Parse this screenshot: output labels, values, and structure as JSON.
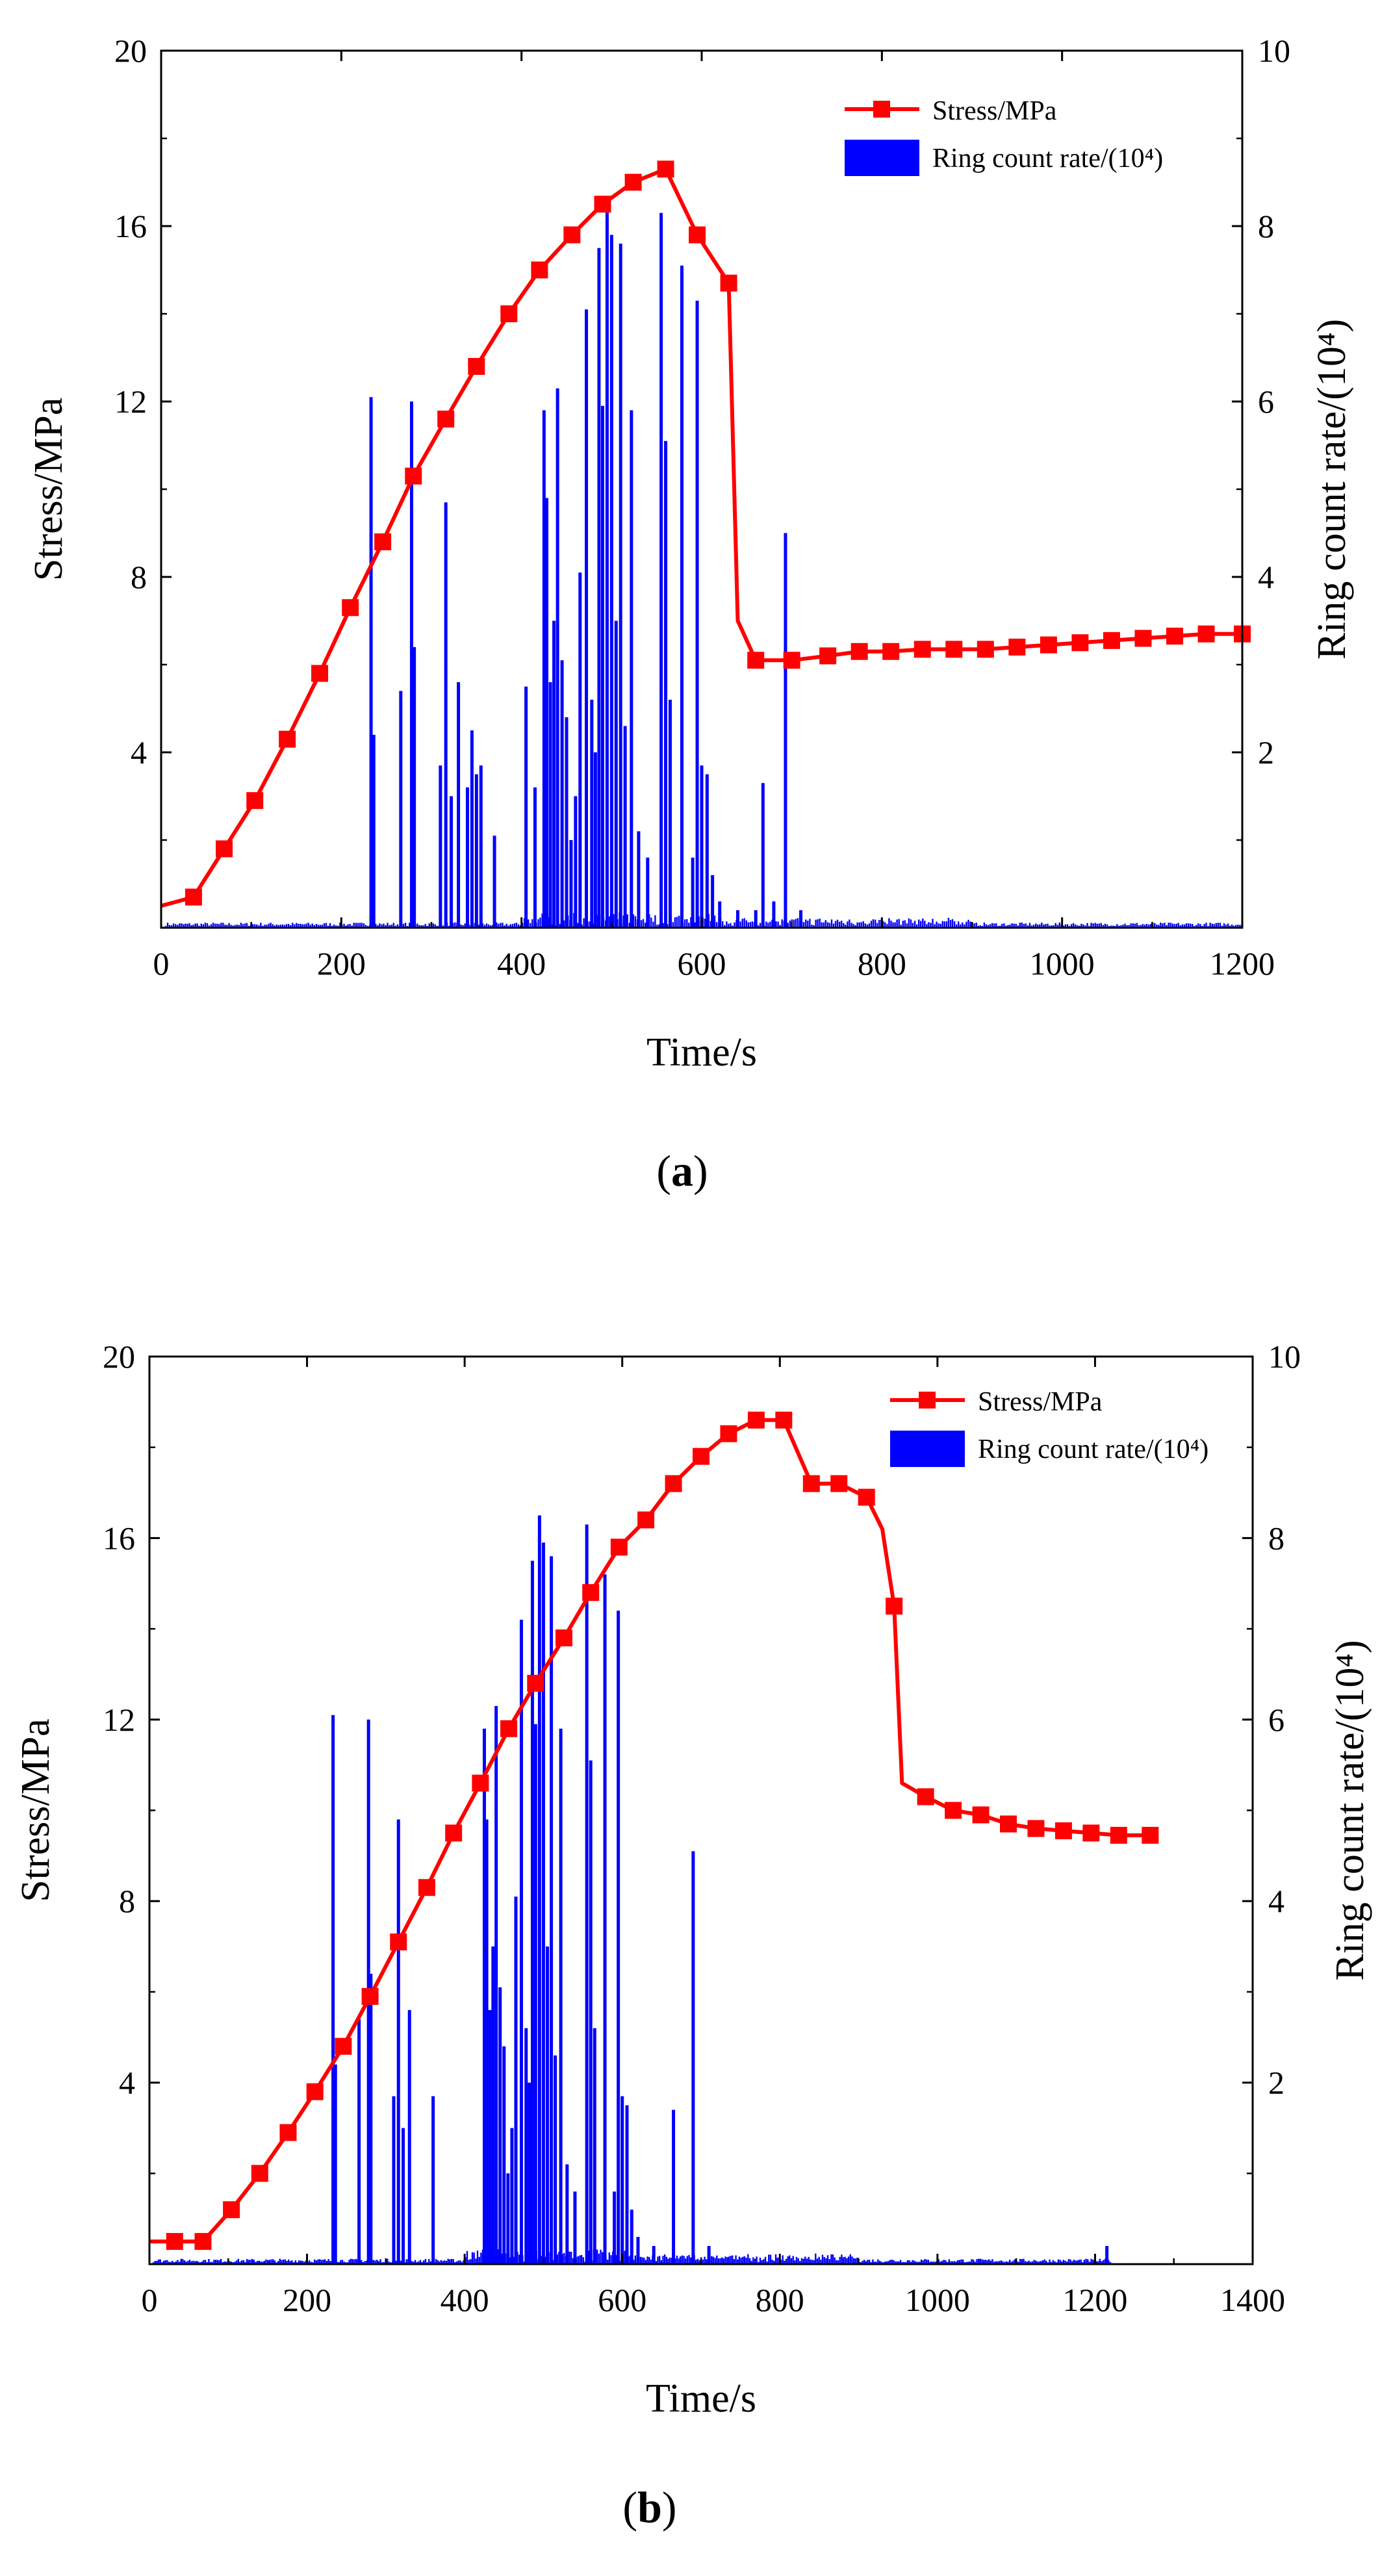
{
  "chart_data": [
    {
      "type": "line",
      "panel_label": "a",
      "xlabel": "Time/s",
      "ylabel": "Stress/MPa",
      "y2label": "Ring count rate/(10⁴)",
      "xlim": [
        0,
        1200
      ],
      "ylim": [
        0,
        20
      ],
      "y2lim": [
        0,
        10
      ],
      "xticks": [
        0,
        200,
        400,
        600,
        800,
        1000,
        1200
      ],
      "yticks": [
        4,
        8,
        12,
        16,
        20
      ],
      "y2ticks": [
        2,
        4,
        6,
        8,
        10
      ],
      "legend": {
        "position": "top-right",
        "entries": [
          "Stress/MPa",
          "Ring count rate/(10⁴)"
        ]
      },
      "series": [
        {
          "name": "Stress/MPa",
          "color": "#ff0000",
          "marker": "square",
          "x": [
            0,
            36,
            70,
            104,
            140,
            176,
            210,
            246,
            280,
            316,
            350,
            386,
            420,
            456,
            490,
            524,
            560,
            595,
            630,
            640,
            660,
            700,
            740,
            775,
            810,
            845,
            880,
            915,
            950,
            985,
            1020,
            1055,
            1090,
            1125,
            1160,
            1200
          ],
          "y": [
            0.5,
            0.7,
            1.8,
            2.9,
            4.3,
            5.8,
            7.3,
            8.8,
            10.3,
            11.6,
            12.8,
            14.0,
            15.0,
            15.8,
            16.5,
            17.0,
            17.3,
            15.8,
            14.7,
            7.0,
            6.1,
            6.1,
            6.2,
            6.3,
            6.3,
            6.35,
            6.35,
            6.35,
            6.4,
            6.45,
            6.5,
            6.55,
            6.6,
            6.65,
            6.7,
            6.7
          ],
          "marker_x": [
            36,
            70,
            104,
            140,
            176,
            210,
            246,
            280,
            316,
            350,
            386,
            420,
            456,
            490,
            524,
            560,
            595,
            630,
            660,
            700,
            740,
            775,
            810,
            845,
            880,
            915,
            950,
            985,
            1020,
            1055,
            1090,
            1125,
            1160,
            1200
          ]
        },
        {
          "name": "Ring count rate/(10⁴)",
          "color": "#0000ff",
          "type": "spikes",
          "x": [
            233,
            236,
            266,
            278,
            281,
            310,
            316,
            322,
            330,
            340,
            345,
            350,
            355,
            370,
            405,
            415,
            425,
            428,
            432,
            436,
            440,
            445,
            450,
            455,
            460,
            465,
            472,
            478,
            482,
            486,
            490,
            495,
            500,
            505,
            510,
            515,
            522,
            530,
            540,
            555,
            560,
            565,
            578,
            590,
            595,
            600,
            606,
            612,
            620,
            640,
            660,
            668,
            680,
            693,
            710
          ],
          "y": [
            6.05,
            2.2,
            2.7,
            6.0,
            3.2,
            1.85,
            4.85,
            1.5,
            2.8,
            1.6,
            2.25,
            1.75,
            1.85,
            1.05,
            2.75,
            1.6,
            5.9,
            4.9,
            2.8,
            3.5,
            6.15,
            3.05,
            2.4,
            1.0,
            1.5,
            4.05,
            7.05,
            2.6,
            2.0,
            7.75,
            5.95,
            8.25,
            7.9,
            3.5,
            7.8,
            2.3,
            5.9,
            1.1,
            0.8,
            8.15,
            5.55,
            2.6,
            7.55,
            0.8,
            7.15,
            1.85,
            1.75,
            0.6,
            0.3,
            0.2,
            0.2,
            1.65,
            0.3,
            4.5,
            0.2
          ]
        }
      ]
    },
    {
      "type": "line",
      "panel_label": "b",
      "xlabel": "Time/s",
      "ylabel": "Stress/MPa",
      "y2label": "Ring count rate/(10⁴)",
      "xlim": [
        0,
        1400
      ],
      "ylim": [
        0,
        20
      ],
      "y2lim": [
        0,
        10
      ],
      "xticks": [
        0,
        200,
        400,
        600,
        800,
        1000,
        1200,
        1400
      ],
      "yticks": [
        4,
        8,
        12,
        16,
        20
      ],
      "y2ticks": [
        2,
        4,
        6,
        8,
        10
      ],
      "legend": {
        "position": "top-right",
        "entries": [
          "Stress/MPa",
          "Ring count rate/(10⁴)"
        ]
      },
      "series": [
        {
          "name": "Stress/MPa",
          "color": "#ff0000",
          "marker": "square",
          "x": [
            0,
            32,
            68,
            104,
            140,
            176,
            210,
            246,
            280,
            316,
            352,
            386,
            420,
            456,
            490,
            526,
            560,
            596,
            630,
            665,
            700,
            735,
            770,
            805,
            840,
            875,
            910,
            930,
            945,
            955,
            985,
            1020,
            1055,
            1090,
            1125,
            1160,
            1195,
            1230,
            1270
          ],
          "y": [
            0.5,
            0.5,
            0.5,
            1.2,
            2.0,
            2.9,
            3.8,
            4.8,
            5.9,
            7.1,
            8.3,
            9.5,
            10.6,
            11.8,
            12.8,
            13.8,
            14.8,
            15.8,
            16.4,
            17.2,
            17.8,
            18.3,
            18.6,
            18.6,
            17.2,
            17.2,
            16.9,
            16.2,
            14.5,
            10.6,
            10.3,
            10.0,
            9.9,
            9.7,
            9.6,
            9.55,
            9.5,
            9.45,
            9.45
          ],
          "marker_x": [
            32,
            68,
            104,
            140,
            176,
            210,
            246,
            280,
            316,
            352,
            386,
            420,
            456,
            490,
            526,
            560,
            596,
            630,
            665,
            700,
            735,
            770,
            805,
            840,
            875,
            910,
            945,
            985,
            1020,
            1055,
            1090,
            1125,
            1160,
            1195,
            1230,
            1270
          ]
        },
        {
          "name": "Ring count rate/(10⁴)",
          "color": "#0000ff",
          "type": "spikes",
          "x": [
            233,
            236,
            266,
            278,
            281,
            310,
            316,
            322,
            330,
            360,
            425,
            428,
            432,
            436,
            440,
            445,
            450,
            455,
            460,
            465,
            472,
            478,
            482,
            486,
            490,
            495,
            500,
            505,
            510,
            515,
            522,
            530,
            540,
            555,
            560,
            565,
            578,
            590,
            595,
            600,
            606,
            612,
            620,
            640,
            665,
            690,
            710,
            1215
          ],
          "y": [
            6.05,
            2.2,
            2.7,
            6.0,
            3.2,
            1.85,
            4.9,
            1.5,
            2.8,
            1.85,
            5.9,
            4.9,
            2.8,
            3.5,
            6.15,
            3.05,
            2.4,
            1.0,
            1.5,
            4.05,
            7.1,
            2.6,
            2.0,
            7.75,
            5.95,
            8.25,
            7.95,
            3.5,
            7.8,
            2.3,
            5.9,
            1.1,
            0.8,
            8.15,
            5.55,
            2.6,
            7.6,
            0.8,
            7.2,
            1.85,
            1.75,
            0.6,
            0.3,
            0.2,
            1.7,
            4.55,
            0.2,
            0.2
          ]
        }
      ]
    }
  ]
}
